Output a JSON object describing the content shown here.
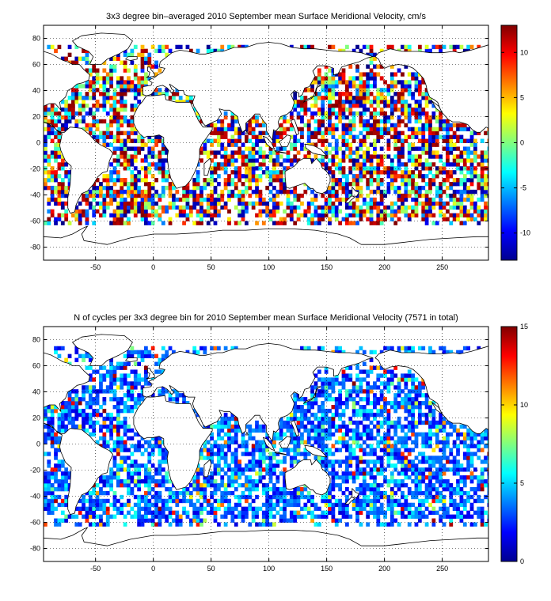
{
  "chart_data": [
    {
      "type": "heatmap",
      "title": "3x3 degree bin–averaged 2010 September mean Surface Meridional Velocity, cm/s",
      "xlabel": "",
      "ylabel": "",
      "xlim": [
        -95,
        290
      ],
      "ylim": [
        -90,
        90
      ],
      "x_ticks": [
        -50,
        0,
        50,
        100,
        150,
        200,
        250
      ],
      "y_ticks": [
        80,
        60,
        40,
        20,
        0,
        -20,
        -40,
        -60,
        -80
      ],
      "grid": true,
      "colorbar": {
        "min": -13,
        "max": 13,
        "ticks": [
          10,
          5,
          0,
          -5,
          -10
        ],
        "colormap": "jet"
      },
      "bin_size_deg": 3,
      "value_kind": "diverging",
      "seed": 17
    },
    {
      "type": "heatmap",
      "title": "N of cycles per 3x3 degree bin for 2010 September mean Surface Meridional Velocity (7571 in total)",
      "xlabel": "",
      "ylabel": "",
      "xlim": [
        -95,
        290
      ],
      "ylim": [
        -90,
        90
      ],
      "x_ticks": [
        -50,
        0,
        50,
        100,
        150,
        200,
        250
      ],
      "y_ticks": [
        80,
        60,
        40,
        20,
        0,
        -20,
        -40,
        -60,
        -80
      ],
      "grid": true,
      "colorbar": {
        "min": 0,
        "max": 15,
        "ticks": [
          15,
          10,
          5,
          0
        ],
        "colormap": "jet"
      },
      "bin_size_deg": 3,
      "value_kind": "count",
      "seed": 29
    }
  ]
}
